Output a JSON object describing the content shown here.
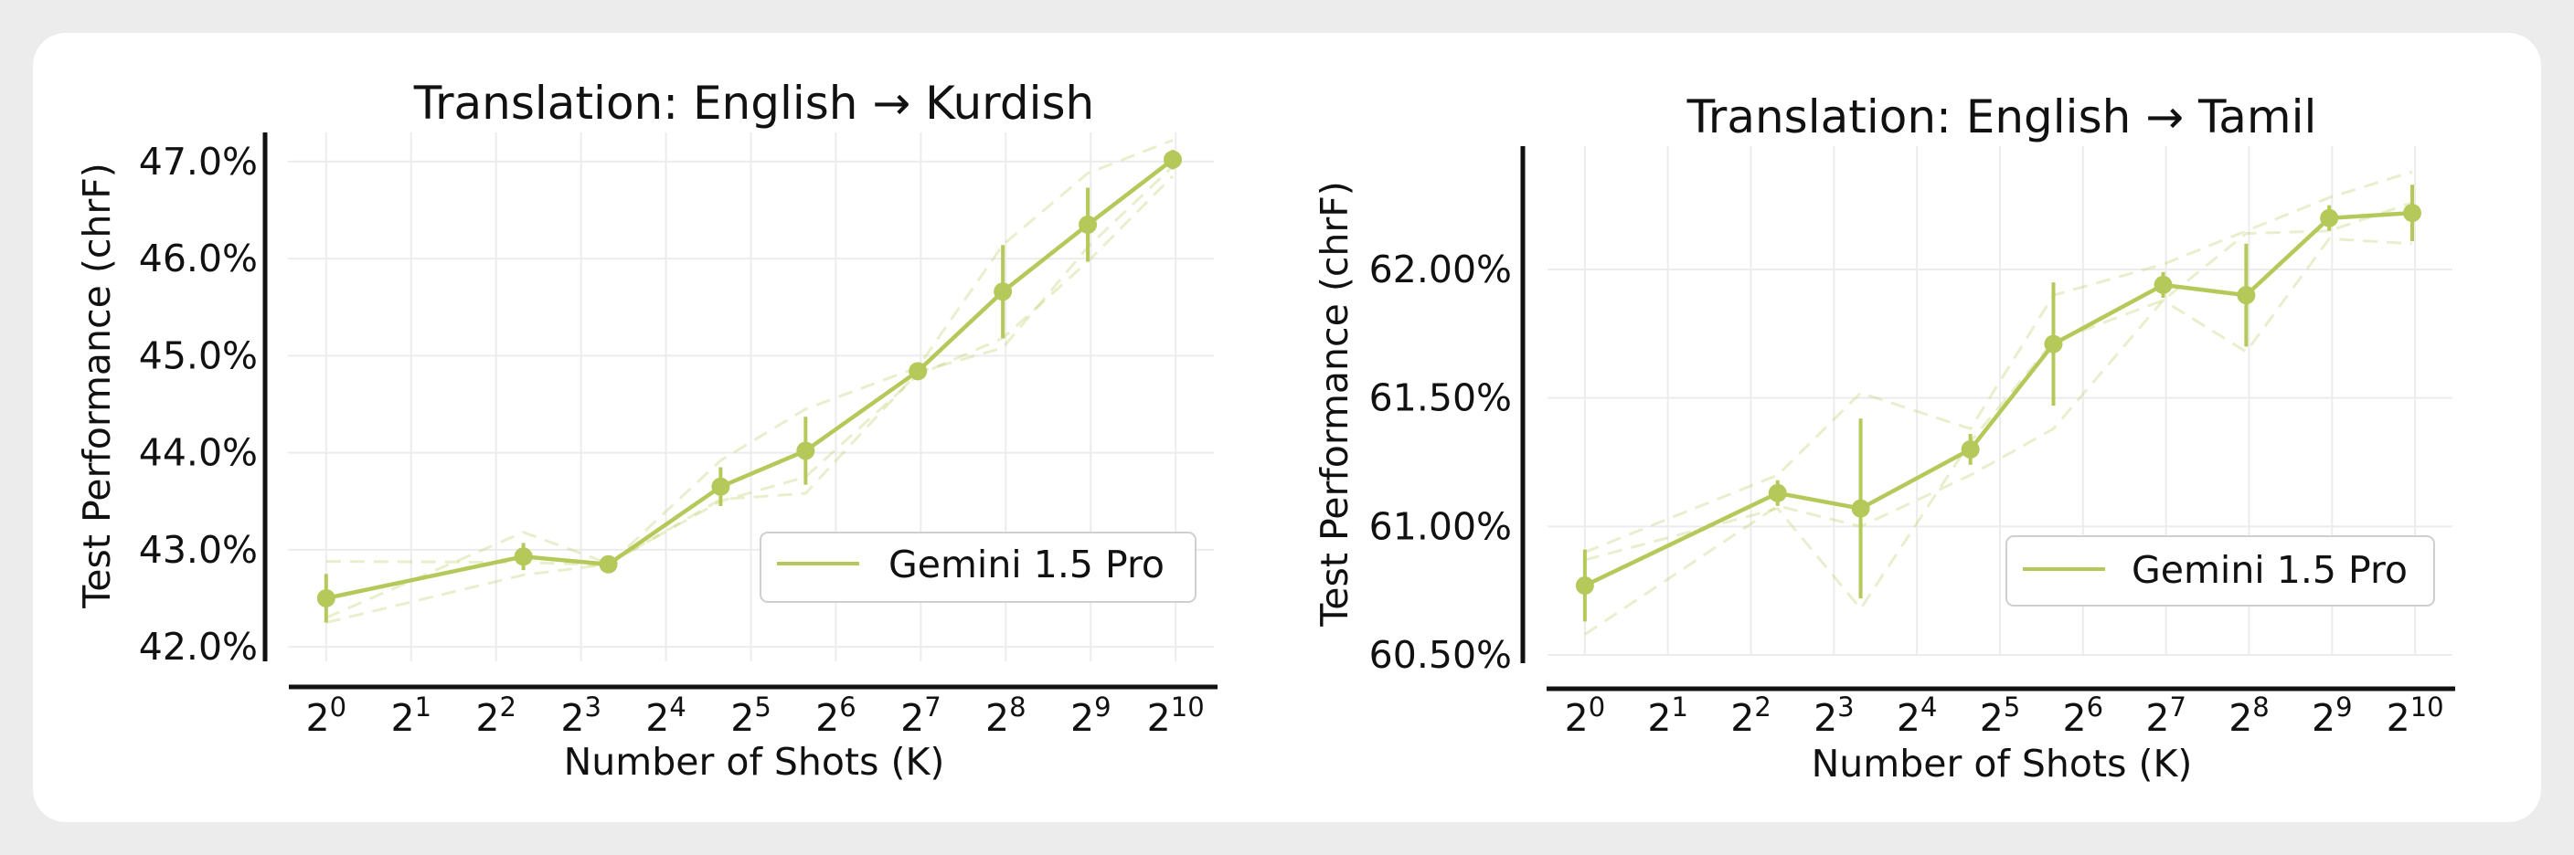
{
  "chart_data": [
    {
      "type": "line",
      "title": "Translation: English → Kurdish",
      "xlabel": "Number of Shots (K)",
      "ylabel": "Test Performance (chrF)",
      "x_scale": "log2",
      "x_ticks": [
        {
          "base": "2",
          "exp": "0"
        },
        {
          "base": "2",
          "exp": "1"
        },
        {
          "base": "2",
          "exp": "2"
        },
        {
          "base": "2",
          "exp": "3"
        },
        {
          "base": "2",
          "exp": "4"
        },
        {
          "base": "2",
          "exp": "5"
        },
        {
          "base": "2",
          "exp": "6"
        },
        {
          "base": "2",
          "exp": "7"
        },
        {
          "base": "2",
          "exp": "8"
        },
        {
          "base": "2",
          "exp": "9"
        },
        {
          "base": "2",
          "exp": "10"
        }
      ],
      "y_ticks": [
        "42.0%",
        "43.0%",
        "44.0%",
        "45.0%",
        "46.0%",
        "47.0%"
      ],
      "y_tick_values": [
        42.0,
        43.0,
        44.0,
        45.0,
        46.0,
        47.0
      ],
      "ylim": [
        41.85,
        47.3
      ],
      "xlim": [
        -0.45,
        10.45
      ],
      "grid": true,
      "legend": {
        "label": "Gemini 1.5 Pro",
        "position": "lower-right"
      },
      "color": "#b5c95a",
      "series": [
        {
          "name": "Gemini 1.5 Pro",
          "x": [
            1,
            5,
            10,
            25,
            50,
            125,
            250,
            500,
            1000
          ],
          "y": [
            42.5,
            42.93,
            42.85,
            43.65,
            44.02,
            44.84,
            45.66,
            46.35,
            47.02
          ],
          "err": [
            0.25,
            0.14,
            0.04,
            0.2,
            0.35,
            0.06,
            0.48,
            0.38,
            0.1
          ]
        }
      ],
      "runs": [
        {
          "y": [
            42.88,
            42.87,
            42.84,
            43.92,
            44.45,
            44.88,
            46.14,
            46.88,
            47.22
          ]
        },
        {
          "y": [
            42.3,
            43.18,
            42.86,
            43.5,
            43.75,
            44.8,
            45.18,
            45.97,
            46.85
          ]
        },
        {
          "y": [
            42.25,
            42.74,
            42.85,
            43.52,
            43.58,
            44.83,
            45.08,
            46.12,
            46.95
          ]
        }
      ]
    },
    {
      "type": "line",
      "title": "Translation: English → Tamil",
      "xlabel": "Number of Shots (K)",
      "ylabel": "Test Performance (chrF)",
      "x_scale": "log2",
      "x_ticks": [
        {
          "base": "2",
          "exp": "0"
        },
        {
          "base": "2",
          "exp": "1"
        },
        {
          "base": "2",
          "exp": "2"
        },
        {
          "base": "2",
          "exp": "3"
        },
        {
          "base": "2",
          "exp": "4"
        },
        {
          "base": "2",
          "exp": "5"
        },
        {
          "base": "2",
          "exp": "6"
        },
        {
          "base": "2",
          "exp": "7"
        },
        {
          "base": "2",
          "exp": "8"
        },
        {
          "base": "2",
          "exp": "9"
        },
        {
          "base": "2",
          "exp": "10"
        }
      ],
      "y_ticks": [
        "60.50%",
        "61.00%",
        "61.50%",
        "62.00%"
      ],
      "y_tick_values": [
        60.5,
        61.0,
        61.5,
        62.0
      ],
      "ylim": [
        60.5,
        62.48
      ],
      "xlim": [
        -0.45,
        10.45
      ],
      "grid": true,
      "legend": {
        "label": "Gemini 1.5 Pro",
        "position": "lower-right"
      },
      "color": "#b5c95a",
      "series": [
        {
          "name": "Gemini 1.5 Pro",
          "x": [
            1,
            5,
            10,
            25,
            50,
            125,
            250,
            500,
            1000
          ],
          "y": [
            60.77,
            61.13,
            61.07,
            61.3,
            61.71,
            61.94,
            61.9,
            62.2,
            62.22
          ],
          "err": [
            0.14,
            0.05,
            0.35,
            0.06,
            0.24,
            0.05,
            0.2,
            0.05,
            0.11
          ]
        }
      ],
      "runs": [
        {
          "y": [
            60.9,
            61.2,
            61.52,
            61.38,
            61.9,
            62.02,
            62.15,
            62.28,
            62.38
          ]
        },
        {
          "y": [
            60.87,
            61.07,
            60.68,
            61.33,
            61.72,
            61.88,
            62.14,
            62.15,
            62.26
          ]
        },
        {
          "y": [
            60.58,
            61.08,
            61.0,
            61.2,
            61.38,
            61.88,
            61.68,
            62.12,
            62.1
          ]
        }
      ]
    }
  ]
}
